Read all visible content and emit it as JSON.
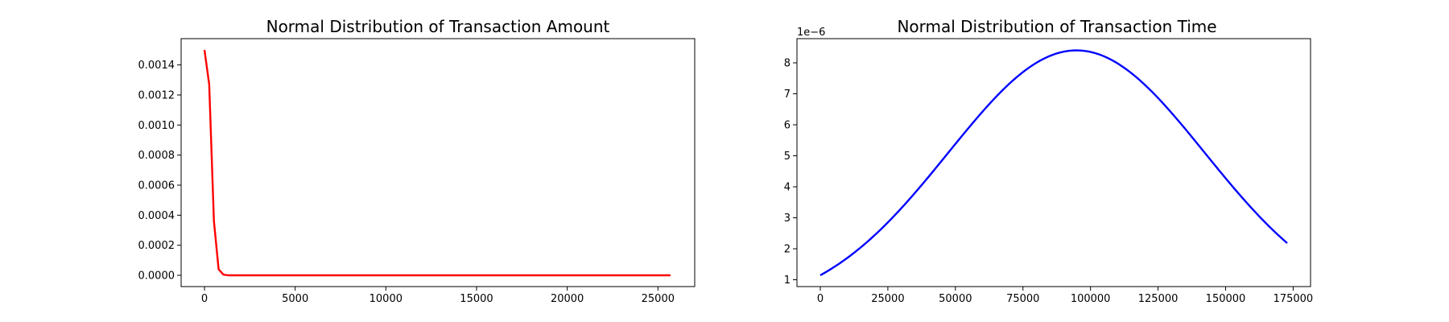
{
  "chart_data": [
    {
      "type": "line",
      "title": "Normal Distribution of Transaction Amount",
      "xlabel": "",
      "ylabel": "",
      "xlim": [
        -1288,
        27028
      ],
      "ylim": [
        -7.5e-05,
        0.001575
      ],
      "xticks": [
        0,
        5000,
        10000,
        15000,
        20000,
        25000
      ],
      "xtick_labels": [
        "0",
        "5000",
        "10000",
        "15000",
        "20000",
        "25000"
      ],
      "yticks": [
        0,
        0.0002,
        0.0004,
        0.0006,
        0.0008,
        0.001,
        0.0012,
        0.0014
      ],
      "ytick_labels": [
        "0.0000",
        "0.0002",
        "0.0004",
        "0.0006",
        "0.0008",
        "0.0010",
        "0.0012",
        "0.0014"
      ],
      "grid": false,
      "series": [
        {
          "color": "#ff0000",
          "x": [
            0,
            260,
            520,
            780,
            1040,
            1300,
            1560,
            25691
          ],
          "y": [
            0.0015,
            0.00127,
            0.00036,
            4e-05,
            5e-06,
            0,
            0,
            0
          ]
        }
      ]
    },
    {
      "type": "line",
      "title": "Normal Distribution of Transaction Time",
      "xlabel": "",
      "ylabel": "",
      "xlim": [
        -8640,
        181432
      ],
      "ylim": [
        0.78,
        8.78
      ],
      "y_offset_label": "1e−6",
      "xticks": [
        0,
        25000,
        50000,
        75000,
        100000,
        125000,
        150000,
        175000
      ],
      "xtick_labels": [
        "0",
        "25000",
        "50000",
        "75000",
        "100000",
        "125000",
        "150000",
        "175000"
      ],
      "yticks": [
        1,
        2,
        3,
        4,
        5,
        6,
        7,
        8
      ],
      "ytick_labels": [
        "1",
        "2",
        "3",
        "4",
        "5",
        "6",
        "7",
        "8"
      ],
      "grid": false,
      "series": [
        {
          "color": "#0000ff",
          "distribution": {
            "mean": 94814,
            "std": 47488,
            "x_start": 0,
            "x_end": 172792,
            "scale": 1000000
          }
        }
      ]
    }
  ]
}
